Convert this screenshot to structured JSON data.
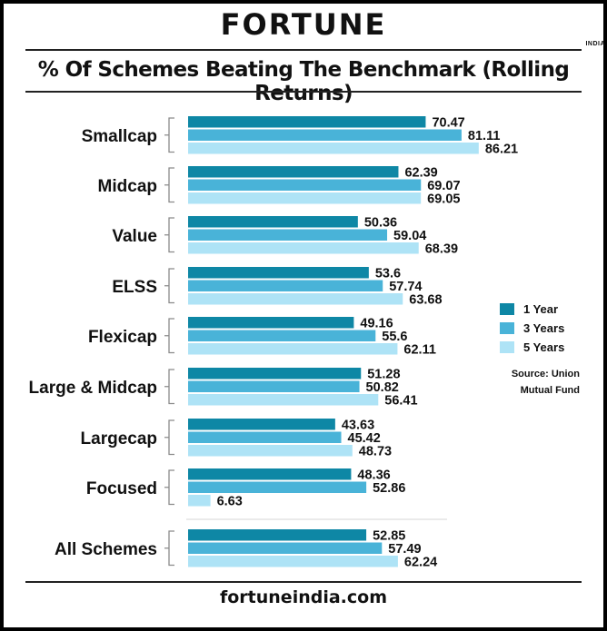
{
  "brand": {
    "name": "FORTUNE",
    "sub": "INDIA"
  },
  "footer": "fortuneindia.com",
  "source": [
    "Source: Union",
    "Mutual Fund"
  ],
  "colors": {
    "1 Year": "#0e87a5",
    "3 Years": "#49b3d8",
    "5 Years": "#aee3f6"
  },
  "chart_data": {
    "type": "bar",
    "orientation": "horizontal",
    "title": "% Of Schemes Beating The Benchmark (Rolling Returns)",
    "xlabel": "",
    "ylabel": "",
    "categories": [
      "Smallcap",
      "Midcap",
      "Value",
      "ELSS",
      "Flexicap",
      "Large & Midcap",
      "Largecap",
      "Focused",
      "All Schemes"
    ],
    "series": [
      {
        "name": "1 Year",
        "color": "#0e87a5",
        "values": [
          70.47,
          62.39,
          50.36,
          53.6,
          49.16,
          51.28,
          43.63,
          48.36,
          52.85
        ],
        "labels": [
          "70.47",
          "62.39",
          "50.36",
          "53.6",
          "49.16",
          "51.28",
          "43.63",
          "48.36",
          "52.85"
        ]
      },
      {
        "name": "3 Years",
        "color": "#49b3d8",
        "values": [
          81.11,
          69.07,
          59.04,
          57.74,
          55.6,
          50.82,
          45.42,
          52.86,
          57.49
        ],
        "labels": [
          "81.11",
          "69.07",
          "59.04",
          "57.74",
          "55.6",
          "50.82",
          "45.42",
          "52.86",
          "57.49"
        ]
      },
      {
        "name": "5 Years",
        "color": "#aee3f6",
        "values": [
          86.21,
          69.05,
          68.39,
          63.68,
          62.11,
          56.41,
          48.73,
          6.63,
          62.24
        ],
        "labels": [
          "86.21",
          "69.05",
          "68.39",
          "63.68",
          "62.11",
          "56.41",
          "48.73",
          "6.63",
          "62.24"
        ]
      }
    ],
    "xlim": [
      0,
      100
    ],
    "grid": false,
    "legend": "right"
  }
}
